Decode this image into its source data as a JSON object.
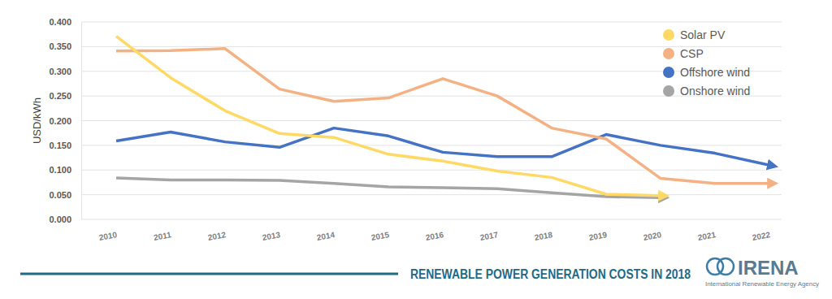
{
  "chart_data": {
    "type": "line",
    "title": "RENEWABLE POWER GENERATION COSTS IN 2018",
    "ylabel": "USD/kWh",
    "annotations": [
      "IRENA",
      "International Renewable Energy Agency"
    ],
    "categories": [
      "2010",
      "2011",
      "2012",
      "2013",
      "2014",
      "2015",
      "2016",
      "2017",
      "2018",
      "2019",
      "2020",
      "2021",
      "2022"
    ],
    "series": [
      {
        "name": "Solar PV",
        "color": "#ffd966",
        "values": [
          0.371,
          0.287,
          0.22,
          0.174,
          0.166,
          0.132,
          0.118,
          0.098,
          0.085,
          0.051,
          0.048,
          null,
          null
        ]
      },
      {
        "name": "CSP",
        "color": "#f4b183",
        "values": [
          0.341,
          0.342,
          0.346,
          0.264,
          0.239,
          0.246,
          0.285,
          0.25,
          0.185,
          0.163,
          0.083,
          0.073,
          0.073
        ]
      },
      {
        "name": "Offshore wind",
        "color": "#4472c4",
        "values": [
          0.159,
          0.177,
          0.157,
          0.146,
          0.185,
          0.169,
          0.136,
          0.127,
          0.127,
          0.172,
          0.15,
          0.134,
          0.11
        ]
      },
      {
        "name": "Onshore wind",
        "color": "#a5a5a5",
        "values": [
          0.084,
          0.08,
          0.08,
          0.079,
          0.073,
          0.066,
          0.064,
          0.062,
          0.054,
          0.046,
          0.044,
          null,
          null
        ]
      }
    ],
    "ylim": [
      0,
      0.4
    ],
    "yticks": [
      {
        "value": 0,
        "label": "0.000"
      },
      {
        "value": 0.05,
        "label": "0.050"
      },
      {
        "value": 0.1,
        "label": "0.100"
      },
      {
        "value": 0.15,
        "label": "0.150"
      },
      {
        "value": 0.2,
        "label": "0.200"
      },
      {
        "value": 0.25,
        "label": "0.250"
      },
      {
        "value": 0.3,
        "label": "0.300"
      },
      {
        "value": 0.35,
        "label": "0.350"
      },
      {
        "value": 0.4,
        "label": "0.400"
      }
    ],
    "grid": true,
    "legend": "top-right"
  }
}
